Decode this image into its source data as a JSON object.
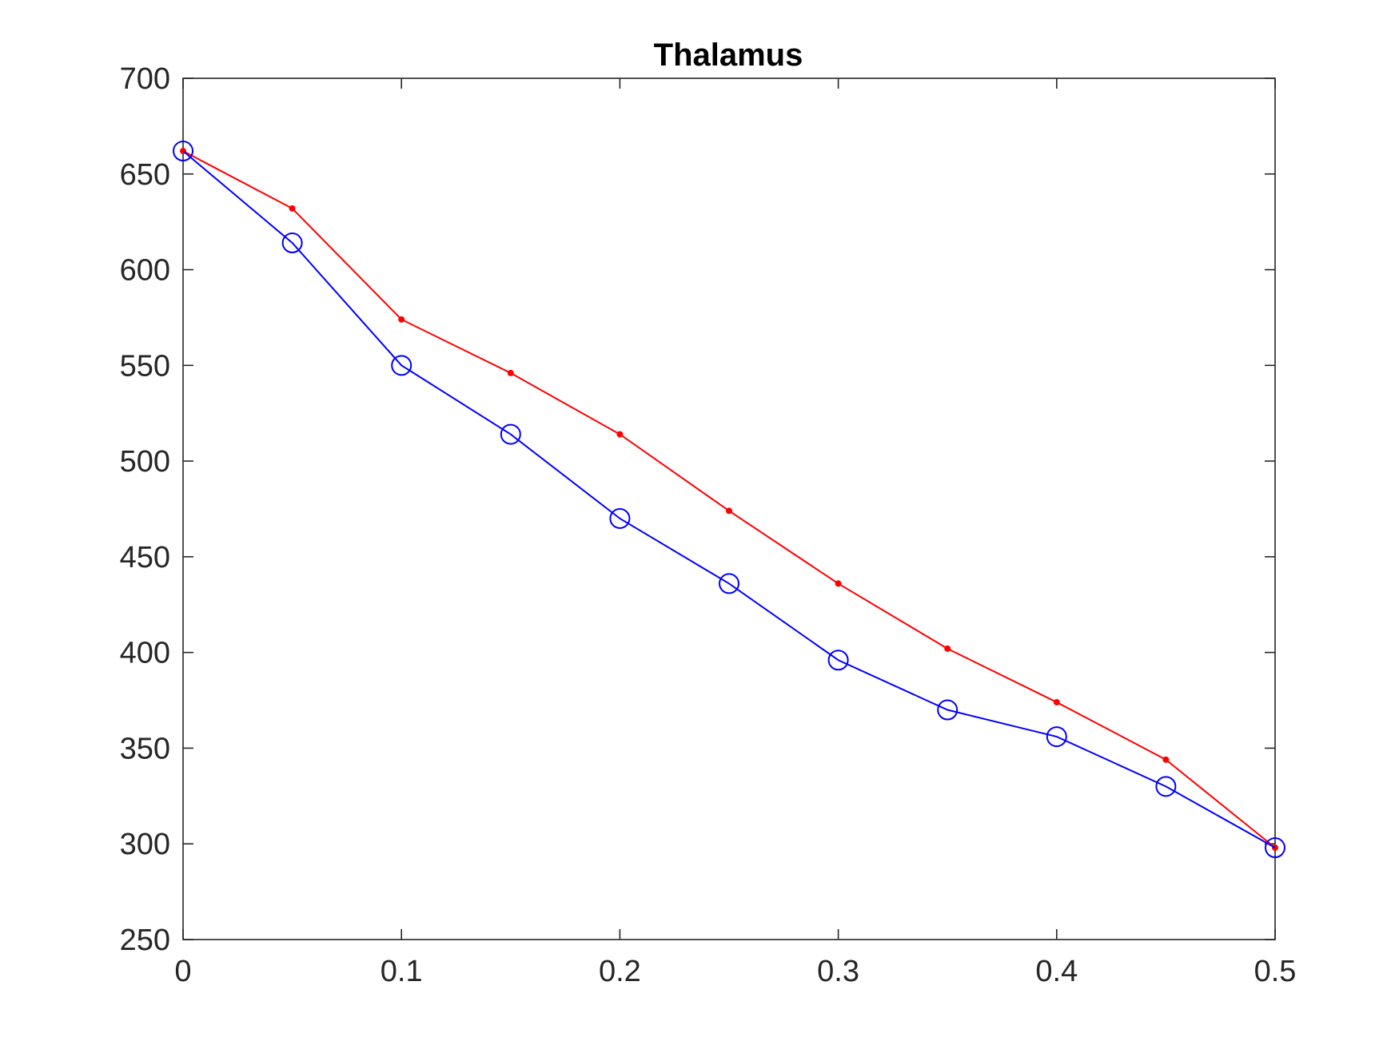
{
  "chart_data": {
    "type": "line",
    "title": "Thalamus",
    "xlabel": "",
    "ylabel": "",
    "xlim": [
      0,
      0.5
    ],
    "ylim": [
      250,
      700
    ],
    "x_ticks": [
      0,
      0.1,
      0.2,
      0.3,
      0.4,
      0.5
    ],
    "x_tick_labels": [
      "0",
      "0.1",
      "0.2",
      "0.3",
      "0.4",
      "0.5"
    ],
    "y_ticks": [
      250,
      300,
      350,
      400,
      450,
      500,
      550,
      600,
      650,
      700
    ],
    "y_tick_labels": [
      "250",
      "300",
      "350",
      "400",
      "450",
      "500",
      "550",
      "600",
      "650",
      "700"
    ],
    "grid": false,
    "legend": null,
    "x": [
      0,
      0.05,
      0.1,
      0.15,
      0.2,
      0.25,
      0.3,
      0.35,
      0.4,
      0.45,
      0.5
    ],
    "series": [
      {
        "color": "#ff0000",
        "marker": "dot",
        "values": [
          662,
          632,
          574,
          546,
          514,
          474,
          436,
          402,
          374,
          344,
          298
        ]
      },
      {
        "color": "#0000ff",
        "marker": "circle",
        "values": [
          662,
          614,
          550,
          514,
          470,
          436,
          396,
          370,
          356,
          330,
          298
        ]
      }
    ]
  }
}
